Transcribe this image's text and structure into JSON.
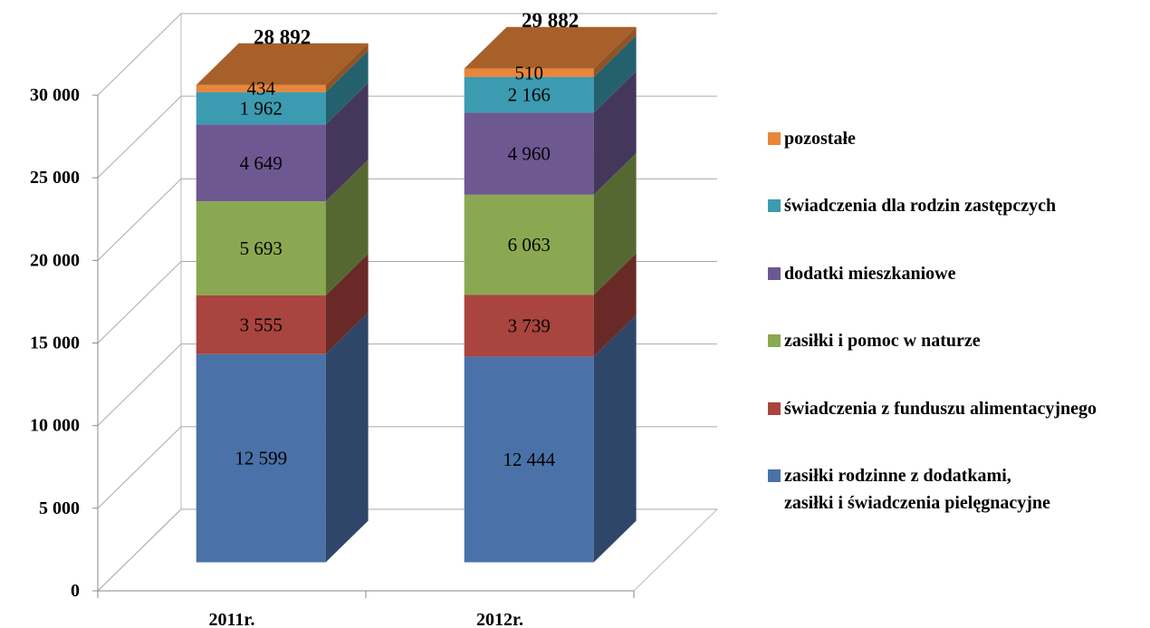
{
  "chart_data": {
    "type": "bar3d_stacked",
    "categories": [
      "2011r.",
      "2012r."
    ],
    "series": [
      {
        "name": "zasiłki rodzinne z dodatkami, zasiłki i świadczenia pielęgnacyjne",
        "color": "#4a72a8",
        "values": [
          12599,
          12444
        ],
        "value_labels": [
          "12 599",
          "12 444"
        ]
      },
      {
        "name": "świadczenia z funduszu alimentacyjnego",
        "color": "#a9443f",
        "values": [
          3555,
          3739
        ],
        "value_labels": [
          "3 555",
          "3 739"
        ]
      },
      {
        "name": "zasiłki i pomoc w naturze",
        "color": "#8aa851",
        "values": [
          5693,
          6063
        ],
        "value_labels": [
          "5 693",
          "6 063"
        ]
      },
      {
        "name": "dodatki mieszkaniowe",
        "color": "#6e5892",
        "values": [
          4649,
          4960
        ],
        "value_labels": [
          "4 649",
          "4 960"
        ]
      },
      {
        "name": "świadczenia dla rodzin zastępczych",
        "color": "#3c9bb1",
        "values": [
          1962,
          2166
        ],
        "value_labels": [
          "1 962",
          "2 166"
        ]
      },
      {
        "name": "pozostałe",
        "color": "#e8863a",
        "values": [
          434,
          510
        ],
        "value_labels": [
          "434",
          "510"
        ]
      }
    ],
    "totals": {
      "values": [
        28892,
        29882
      ],
      "value_labels": [
        "28 892",
        "29 882"
      ]
    },
    "ylim": [
      0,
      30000
    ],
    "yticks": [
      {
        "value": 0,
        "label": "0"
      },
      {
        "value": 5000,
        "label": "5 000"
      },
      {
        "value": 10000,
        "label": "10 000"
      },
      {
        "value": 15000,
        "label": "15 000"
      },
      {
        "value": 20000,
        "label": "20 000"
      },
      {
        "value": 25000,
        "label": "25 000"
      },
      {
        "value": 30000,
        "label": "30 000"
      }
    ],
    "grid": true,
    "legend": "right"
  }
}
